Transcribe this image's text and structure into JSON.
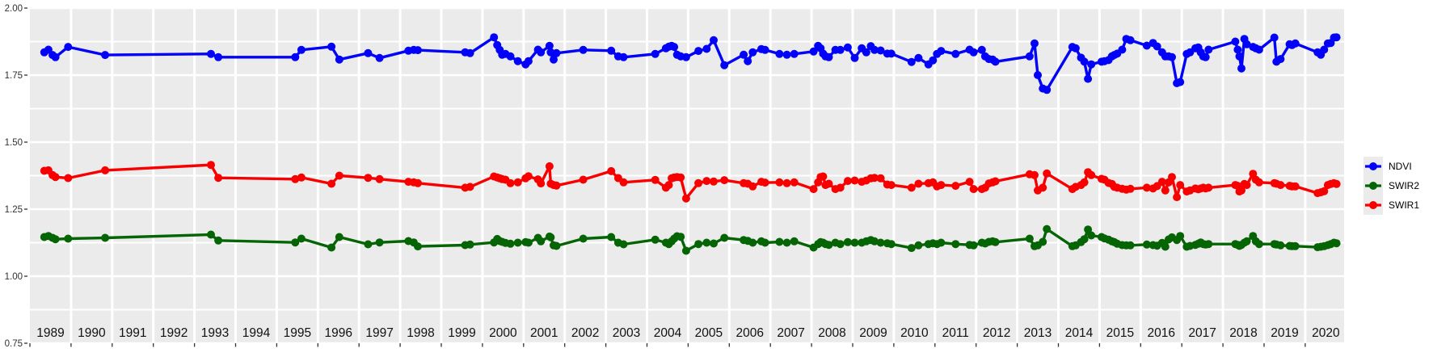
{
  "style": {
    "panel_bg": "#ebebeb",
    "grid_color": "#ffffff",
    "tick_color": "#333333",
    "y_axis_text_color": "#303030",
    "year_text_color": "#111111",
    "page_bg": "#ffffff"
  },
  "legend": {
    "position": "right",
    "items": [
      {
        "label": "NDVI",
        "color": "#0202f8"
      },
      {
        "label": "SWIR2",
        "color": "#056505"
      },
      {
        "label": "SWIR1",
        "color": "#f80000"
      }
    ]
  },
  "chart_data": {
    "type": "line",
    "title": "",
    "xlabel": "",
    "ylabel": "",
    "xlim": [
      1989.0,
      2020.94
    ],
    "ylim": [
      0.747,
      2.003
    ],
    "grid": {
      "horizontal_step": 0.125,
      "vertical_at_year_boundaries": true,
      "background": "gray panel with white gridlines"
    },
    "y_ticks": [
      {
        "label": "2.00",
        "value": 2.0
      },
      {
        "label": "1.75",
        "value": 1.75
      },
      {
        "label": "1.50",
        "value": 1.5
      },
      {
        "label": "1.25",
        "value": 1.25
      },
      {
        "label": "1.00",
        "value": 1.0
      },
      {
        "label": "0.75",
        "value": 0.75
      }
    ],
    "x_tick_labels": [
      "1989",
      "1990",
      "1991",
      "1992",
      "1993",
      "1994",
      "1995",
      "1996",
      "1997",
      "1998",
      "1999",
      "2000",
      "2001",
      "2002",
      "2003",
      "2004",
      "2005",
      "2006",
      "2007",
      "2008",
      "2009",
      "2010",
      "2011",
      "2012",
      "2013",
      "2014",
      "2015",
      "2016",
      "2017",
      "2018",
      "2019",
      "2020"
    ],
    "x": [
      1989.35,
      1989.45,
      1989.55,
      1989.62,
      1989.93,
      1990.83,
      1993.4,
      1993.58,
      1995.45,
      1995.6,
      1996.33,
      1996.52,
      1997.22,
      1997.5,
      1998.2,
      1998.33,
      1998.43,
      1999.58,
      1999.7,
      2000.28,
      2000.36,
      2000.42,
      2000.48,
      2000.56,
      2000.68,
      2000.86,
      2001.05,
      2001.12,
      2001.35,
      2001.42,
      2001.63,
      2001.66,
      2001.73,
      2001.8,
      2002.45,
      2003.13,
      2003.3,
      2003.43,
      2004.2,
      2004.46,
      2004.53,
      2004.6,
      2004.66,
      2004.73,
      2004.82,
      2004.95,
      2005.25,
      2005.45,
      2005.62,
      2005.88,
      2006.35,
      2006.45,
      2006.57,
      2006.78,
      2006.87,
      2007.22,
      2007.4,
      2007.58,
      2008.05,
      2008.16,
      2008.22,
      2008.28,
      2008.34,
      2008.42,
      2008.58,
      2008.7,
      2008.88,
      2009.05,
      2009.22,
      2009.33,
      2009.44,
      2009.53,
      2009.68,
      2009.84,
      2009.94,
      2010.43,
      2010.6,
      2010.84,
      2010.95,
      2011.05,
      2011.15,
      2011.5,
      2011.84,
      2011.94,
      2012.14,
      2012.22,
      2012.31,
      2012.4,
      2012.47,
      2013.3,
      2013.42,
      2013.5,
      2013.62,
      2013.72,
      2014.34,
      2014.42,
      2014.55,
      2014.63,
      2014.72,
      2014.8,
      2015.05,
      2015.12,
      2015.22,
      2015.3,
      2015.36,
      2015.43,
      2015.55,
      2015.65,
      2015.75,
      2016.15,
      2016.3,
      2016.4,
      2016.52,
      2016.6,
      2016.68,
      2016.76,
      2016.88,
      2016.96,
      2017.12,
      2017.2,
      2017.33,
      2017.4,
      2017.46,
      2017.52,
      2017.58,
      2017.65,
      2018.3,
      2018.36,
      2018.4,
      2018.45,
      2018.52,
      2018.58,
      2018.73,
      2018.8,
      2018.88,
      2019.25,
      2019.3,
      2019.4,
      2019.62,
      2019.68,
      2019.76,
      2020.3,
      2020.38,
      2020.46,
      2020.55,
      2020.62,
      2020.7,
      2020.76
    ],
    "series": [
      {
        "name": "NDVI",
        "color": "#0202f8",
        "values": [
          1.835,
          1.845,
          1.825,
          1.817,
          1.855,
          1.825,
          1.829,
          1.817,
          1.817,
          1.844,
          1.856,
          1.808,
          1.832,
          1.814,
          1.841,
          1.844,
          1.843,
          1.835,
          1.832,
          1.891,
          1.862,
          1.844,
          1.826,
          1.829,
          1.82,
          1.802,
          1.79,
          1.802,
          1.845,
          1.835,
          1.859,
          1.835,
          1.808,
          1.832,
          1.844,
          1.841,
          1.82,
          1.817,
          1.829,
          1.85,
          1.856,
          1.859,
          1.855,
          1.826,
          1.82,
          1.817,
          1.84,
          1.848,
          1.88,
          1.787,
          1.826,
          1.802,
          1.835,
          1.847,
          1.844,
          1.829,
          1.826,
          1.829,
          1.838,
          1.859,
          1.85,
          1.83,
          1.82,
          1.817,
          1.844,
          1.844,
          1.853,
          1.814,
          1.85,
          1.835,
          1.858,
          1.844,
          1.842,
          1.83,
          1.83,
          1.799,
          1.814,
          1.79,
          1.805,
          1.829,
          1.84,
          1.829,
          1.845,
          1.835,
          1.844,
          1.82,
          1.81,
          1.808,
          1.8,
          1.82,
          1.868,
          1.75,
          1.7,
          1.695,
          1.855,
          1.85,
          1.815,
          1.8,
          1.736,
          1.79,
          1.8,
          1.802,
          1.806,
          1.82,
          1.825,
          1.83,
          1.845,
          1.885,
          1.88,
          1.86,
          1.87,
          1.857,
          1.835,
          1.82,
          1.82,
          1.817,
          1.72,
          1.724,
          1.829,
          1.835,
          1.85,
          1.853,
          1.835,
          1.82,
          1.817,
          1.845,
          1.875,
          1.845,
          1.82,
          1.775,
          1.885,
          1.865,
          1.855,
          1.85,
          1.845,
          1.89,
          1.8,
          1.81,
          1.865,
          1.862,
          1.868,
          1.835,
          1.826,
          1.845,
          1.868,
          1.87,
          1.89,
          1.891
        ]
      },
      {
        "name": "SWIR2",
        "color": "#056505",
        "values": [
          1.146,
          1.15,
          1.143,
          1.138,
          1.14,
          1.143,
          1.155,
          1.133,
          1.126,
          1.14,
          1.107,
          1.146,
          1.119,
          1.126,
          1.131,
          1.126,
          1.111,
          1.116,
          1.118,
          1.126,
          1.139,
          1.131,
          1.128,
          1.124,
          1.121,
          1.125,
          1.127,
          1.125,
          1.143,
          1.13,
          1.148,
          1.145,
          1.115,
          1.113,
          1.14,
          1.146,
          1.125,
          1.119,
          1.136,
          1.125,
          1.12,
          1.13,
          1.14,
          1.149,
          1.147,
          1.095,
          1.12,
          1.125,
          1.122,
          1.143,
          1.135,
          1.132,
          1.125,
          1.13,
          1.125,
          1.128,
          1.125,
          1.13,
          1.107,
          1.12,
          1.127,
          1.125,
          1.12,
          1.117,
          1.125,
          1.12,
          1.127,
          1.125,
          1.125,
          1.13,
          1.135,
          1.13,
          1.125,
          1.123,
          1.12,
          1.105,
          1.115,
          1.12,
          1.123,
          1.12,
          1.125,
          1.12,
          1.117,
          1.115,
          1.125,
          1.122,
          1.128,
          1.13,
          1.127,
          1.14,
          1.112,
          1.115,
          1.128,
          1.176,
          1.112,
          1.115,
          1.127,
          1.138,
          1.174,
          1.152,
          1.146,
          1.141,
          1.136,
          1.13,
          1.127,
          1.121,
          1.116,
          1.115,
          1.115,
          1.118,
          1.116,
          1.114,
          1.124,
          1.11,
          1.137,
          1.145,
          1.135,
          1.15,
          1.11,
          1.113,
          1.117,
          1.121,
          1.126,
          1.12,
          1.118,
          1.12,
          1.12,
          1.117,
          1.113,
          1.117,
          1.125,
          1.13,
          1.15,
          1.13,
          1.12,
          1.12,
          1.118,
          1.115,
          1.113,
          1.112,
          1.112,
          1.108,
          1.11,
          1.112,
          1.116,
          1.12,
          1.125,
          1.123
        ]
      },
      {
        "name": "SWIR1",
        "color": "#f80000",
        "values": [
          1.393,
          1.395,
          1.377,
          1.37,
          1.366,
          1.395,
          1.415,
          1.367,
          1.362,
          1.368,
          1.345,
          1.375,
          1.367,
          1.362,
          1.352,
          1.35,
          1.347,
          1.33,
          1.333,
          1.372,
          1.368,
          1.365,
          1.362,
          1.36,
          1.347,
          1.35,
          1.365,
          1.373,
          1.361,
          1.346,
          1.41,
          1.345,
          1.34,
          1.338,
          1.36,
          1.392,
          1.366,
          1.35,
          1.359,
          1.33,
          1.34,
          1.365,
          1.368,
          1.37,
          1.368,
          1.29,
          1.347,
          1.355,
          1.353,
          1.358,
          1.347,
          1.345,
          1.335,
          1.352,
          1.349,
          1.35,
          1.347,
          1.35,
          1.325,
          1.35,
          1.37,
          1.372,
          1.34,
          1.345,
          1.325,
          1.33,
          1.355,
          1.357,
          1.352,
          1.357,
          1.365,
          1.367,
          1.365,
          1.342,
          1.34,
          1.33,
          1.345,
          1.347,
          1.35,
          1.335,
          1.34,
          1.337,
          1.352,
          1.325,
          1.325,
          1.33,
          1.346,
          1.35,
          1.354,
          1.38,
          1.377,
          1.32,
          1.33,
          1.383,
          1.325,
          1.333,
          1.34,
          1.35,
          1.388,
          1.377,
          1.363,
          1.36,
          1.348,
          1.344,
          1.333,
          1.33,
          1.326,
          1.323,
          1.326,
          1.33,
          1.327,
          1.336,
          1.352,
          1.32,
          1.35,
          1.37,
          1.295,
          1.34,
          1.316,
          1.32,
          1.327,
          1.324,
          1.327,
          1.33,
          1.327,
          1.33,
          1.34,
          1.337,
          1.316,
          1.32,
          1.344,
          1.34,
          1.382,
          1.36,
          1.35,
          1.347,
          1.345,
          1.34,
          1.337,
          1.335,
          1.335,
          1.31,
          1.313,
          1.317,
          1.34,
          1.344,
          1.347,
          1.344
        ]
      }
    ]
  }
}
